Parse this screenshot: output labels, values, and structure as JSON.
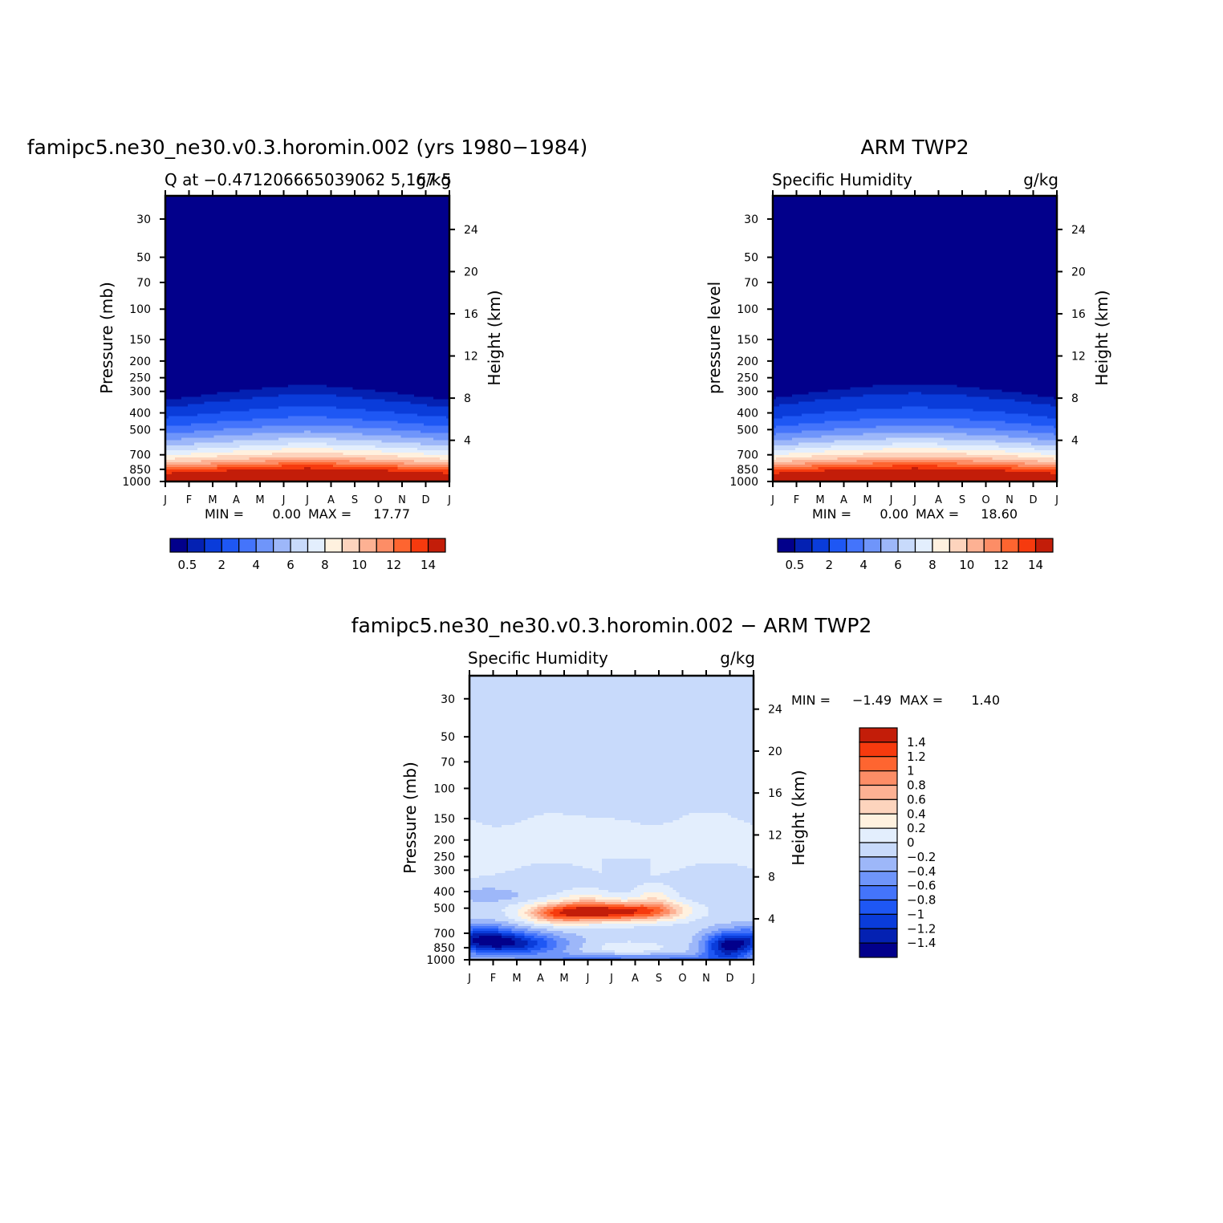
{
  "chart_data": [
    {
      "type": "heatmap",
      "title": "famipc5.ne30_ne30.v0.3.horomin.002 (yrs 1980−1984)",
      "subtitle_left": "Q at −0.471206665039062 5,167.5",
      "subtitle_right": "g/kg",
      "ylabel": "Pressure (mb)",
      "ylabel_right": "Height (km)",
      "x_ticks": [
        "J",
        "F",
        "M",
        "A",
        "M",
        "J",
        "J",
        "A",
        "S",
        "O",
        "N",
        "D",
        "J"
      ],
      "y_ticks": [
        30,
        50,
        70,
        100,
        150,
        200,
        250,
        300,
        400,
        500,
        700,
        850,
        1000
      ],
      "y2_ticks": [
        24,
        20,
        16,
        12,
        8,
        4
      ],
      "ylim": [
        1000,
        22
      ],
      "stats": {
        "min_label": "MIN =",
        "min": "0.00",
        "max_label": "MAX =",
        "max": "17.77"
      },
      "colorbar": {
        "orientation": "horizontal",
        "levels": [
          0.5,
          1,
          2,
          3,
          4,
          5,
          6,
          7,
          8,
          9,
          10,
          11,
          12,
          13,
          14
        ],
        "labels": [
          "0.5",
          "2",
          "4",
          "6",
          "8",
          "10",
          "12",
          "14"
        ]
      },
      "field": {
        "description_units": "g/kg",
        "profile_pressure": [
          1000,
          925,
          850,
          800,
          750,
          700,
          650,
          600,
          550,
          500,
          450,
          400,
          350,
          300,
          250,
          22
        ],
        "profile_value": [
          17.5,
          15.5,
          13.2,
          11.4,
          9.8,
          8.5,
          7.2,
          6.0,
          4.9,
          3.8,
          2.8,
          1.9,
          1.0,
          0.3,
          0.05,
          0.0
        ],
        "seasonal_shift_mb": [
          -20,
          -10,
          5,
          15,
          25,
          35,
          40,
          35,
          25,
          15,
          5,
          -10,
          -20
        ]
      }
    },
    {
      "type": "heatmap",
      "title": "ARM TWP2",
      "subtitle_left": "Specific Humidity",
      "subtitle_right": "g/kg",
      "ylabel": "pressure level",
      "ylabel_right": "Height (km)",
      "x_ticks": [
        "J",
        "F",
        "M",
        "A",
        "M",
        "J",
        "J",
        "A",
        "S",
        "O",
        "N",
        "D",
        "J"
      ],
      "y_ticks": [
        30,
        50,
        70,
        100,
        150,
        200,
        250,
        300,
        400,
        500,
        700,
        850,
        1000
      ],
      "y2_ticks": [
        24,
        20,
        16,
        12,
        8,
        4
      ],
      "ylim": [
        1000,
        22
      ],
      "stats": {
        "min_label": "MIN =",
        "min": "0.00",
        "max_label": "MAX =",
        "max": "18.60"
      },
      "colorbar": {
        "orientation": "horizontal",
        "levels": [
          0.5,
          1,
          2,
          3,
          4,
          5,
          6,
          7,
          8,
          9,
          10,
          11,
          12,
          13,
          14
        ],
        "labels": [
          "0.5",
          "2",
          "4",
          "6",
          "8",
          "10",
          "12",
          "14"
        ]
      },
      "field": {
        "description_units": "g/kg",
        "profile_pressure": [
          1000,
          925,
          850,
          800,
          750,
          700,
          650,
          600,
          550,
          500,
          450,
          400,
          350,
          300,
          250,
          22
        ],
        "profile_value": [
          18.0,
          15.8,
          13.5,
          11.8,
          10.2,
          8.8,
          7.5,
          6.2,
          5.0,
          3.9,
          2.9,
          2.0,
          1.2,
          0.5,
          0.1,
          0.0
        ],
        "seasonal_shift_mb": [
          -30,
          -15,
          0,
          10,
          20,
          25,
          30,
          25,
          20,
          10,
          0,
          -15,
          -30
        ]
      }
    },
    {
      "type": "heatmap",
      "title": "famipc5.ne30_ne30.v0.3.horomin.002 − ARM TWP2",
      "subtitle_left": "Specific Humidity",
      "subtitle_right": "g/kg",
      "ylabel": "Pressure (mb)",
      "ylabel_right": "Height (km)",
      "x_ticks": [
        "J",
        "F",
        "M",
        "A",
        "M",
        "J",
        "J",
        "A",
        "S",
        "O",
        "N",
        "D",
        "J"
      ],
      "y_ticks": [
        30,
        50,
        70,
        100,
        150,
        200,
        250,
        300,
        400,
        500,
        700,
        850,
        1000
      ],
      "y2_ticks": [
        24,
        20,
        16,
        12,
        8,
        4
      ],
      "ylim": [
        1000,
        22
      ],
      "stats": {
        "min_label": "MIN =",
        "min": "−1.49",
        "max_label": "MAX =",
        "max": "1.40"
      },
      "colorbar": {
        "orientation": "vertical",
        "levels": [
          -1.4,
          -1.2,
          -1,
          -0.8,
          -0.6,
          -0.4,
          -0.2,
          0,
          0.2,
          0.4,
          0.6,
          0.8,
          1,
          1.2,
          1.4
        ],
        "labels": [
          "1.4",
          "1.2",
          "1",
          "0.8",
          "0.6",
          "0.4",
          "0.2",
          "0",
          "−0.2",
          "−0.4",
          "−0.6",
          "−0.8",
          "−1",
          "−1.2",
          "−1.4"
        ]
      },
      "field": {
        "description_units": "g/kg",
        "features": [
          {
            "kind": "upper_positive",
            "p_bottom": 330,
            "p_top": 130,
            "value": 0.1
          },
          {
            "kind": "midlevel_max",
            "month": 5.3,
            "p": 520,
            "value": 1.4
          },
          {
            "kind": "lowlevel_min_dec",
            "month": 10.9,
            "p": 830,
            "value": -1.49
          },
          {
            "kind": "lowlevel_min_jan",
            "month": 0.6,
            "p": 780,
            "value": -1.2
          }
        ]
      }
    }
  ],
  "colors": {
    "palette": [
      "#02008b",
      "#0421b2",
      "#0a3cda",
      "#1e57f4",
      "#4474fb",
      "#6f95fa",
      "#9db7f9",
      "#c8dafb",
      "#e3eefd",
      "#fff1df",
      "#fdd4bd",
      "#fdb193",
      "#fd8d66",
      "#fe6530",
      "#f63a0e",
      "#c31d09",
      "#8d0808"
    ]
  }
}
